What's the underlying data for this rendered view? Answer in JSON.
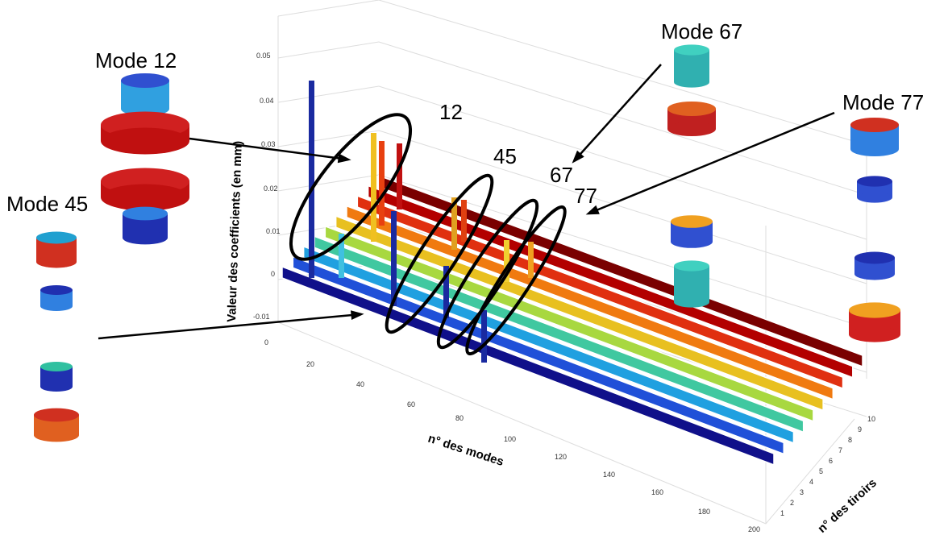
{
  "annotations": {
    "mode_12": "Mode 12",
    "mode_45": "Mode 45",
    "mode_67": "Mode 67",
    "mode_77": "Mode 77",
    "callouts": [
      "12",
      "45",
      "67",
      "77"
    ]
  },
  "axes": {
    "y_label": "Valeur des coefficients (en mm)",
    "y_ticks": [
      "0.05",
      "0.04",
      "0.03",
      "0.02",
      "0.01",
      "0",
      "-0.01"
    ],
    "x_label": "n° des modes",
    "x_ticks": [
      "0",
      "20",
      "40",
      "60",
      "80",
      "100",
      "120",
      "140",
      "160",
      "180",
      "200"
    ],
    "z_label": "n° des tiroirs",
    "z_ticks": [
      "1",
      "2",
      "3",
      "4",
      "5",
      "6",
      "7",
      "8",
      "9",
      "10"
    ]
  }
}
